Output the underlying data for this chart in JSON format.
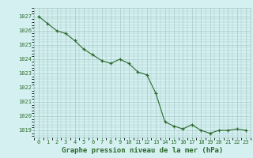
{
  "x": [
    0,
    1,
    2,
    3,
    4,
    5,
    6,
    7,
    8,
    9,
    10,
    11,
    12,
    13,
    14,
    15,
    16,
    17,
    18,
    19,
    20,
    21,
    22,
    23
  ],
  "y": [
    1027.0,
    1026.5,
    1026.0,
    1025.8,
    1025.3,
    1024.7,
    1024.3,
    1023.9,
    1023.7,
    1024.0,
    1023.7,
    1023.1,
    1022.9,
    1021.6,
    1019.6,
    1019.3,
    1019.1,
    1019.4,
    1019.0,
    1018.8,
    1019.0,
    1019.0,
    1019.1,
    1019.0
  ],
  "line_color": "#2d6a2d",
  "marker": "+",
  "bg_color": "#d4f0f0",
  "grid_color": "#a8c8c8",
  "text_color": "#2d6a2d",
  "xlabel": "Graphe pression niveau de la mer (hPa)",
  "ylim_min": 1018.5,
  "ylim_max": 1027.6,
  "yticks": [
    1019,
    1020,
    1021,
    1022,
    1023,
    1024,
    1025,
    1026,
    1027
  ],
  "xlim_min": -0.5,
  "xlim_max": 23.5,
  "xticks": [
    0,
    1,
    2,
    3,
    4,
    5,
    6,
    7,
    8,
    9,
    10,
    11,
    12,
    13,
    14,
    15,
    16,
    17,
    18,
    19,
    20,
    21,
    22,
    23
  ],
  "fontsize_ticks": 5.0,
  "fontsize_xlabel": 6.5
}
